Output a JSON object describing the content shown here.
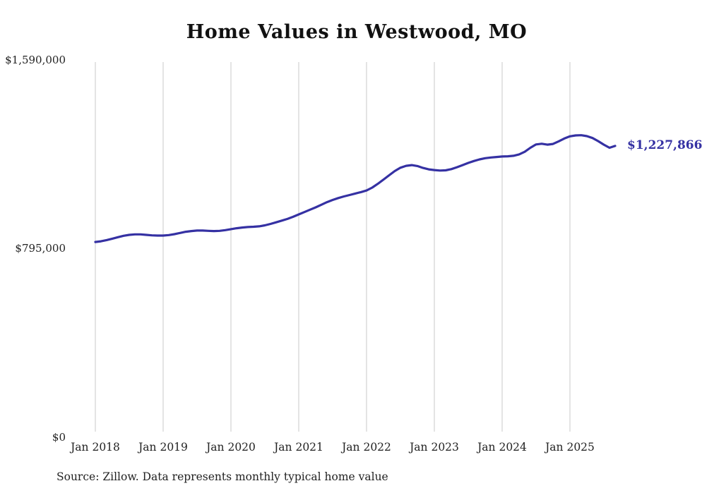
{
  "title": "Home Values in Westwood, MO",
  "source_note": "Source: Zillow. Data represents monthly typical home value",
  "colors": {
    "line": "#3531a3",
    "grid": "#c9c9c9",
    "text": "#222222"
  },
  "chart_data": {
    "type": "line",
    "title": "Home Values in Westwood, MO",
    "x_start": "2018-01",
    "x_interval": "monthly",
    "x_tick_labels": [
      "Jan 2018",
      "Jan 2019",
      "Jan 2020",
      "Jan 2021",
      "Jan 2022",
      "Jan 2023",
      "Jan 2024",
      "Jan 2025"
    ],
    "y_tick_labels": [
      "$0",
      "$795,000",
      "$1,590,000"
    ],
    "ylim": [
      0,
      1590000
    ],
    "grid": "vertical-only",
    "legend": "none",
    "end_value_label": "$1,227,866",
    "end_value": 1227866,
    "values": [
      823000,
      826000,
      831000,
      837000,
      843000,
      849000,
      853000,
      855000,
      855000,
      853000,
      851000,
      850000,
      850000,
      852000,
      856000,
      861000,
      866000,
      869000,
      871000,
      871000,
      870000,
      869000,
      870000,
      873000,
      877000,
      881000,
      884000,
      886000,
      887000,
      889000,
      893000,
      899000,
      906000,
      913000,
      920000,
      929000,
      939000,
      949000,
      959000,
      969000,
      980000,
      991000,
      1000000,
      1008000,
      1015000,
      1021000,
      1027000,
      1033000,
      1040000,
      1052000,
      1068000,
      1086000,
      1104000,
      1122000,
      1136000,
      1144000,
      1147000,
      1143000,
      1135000,
      1129000,
      1126000,
      1124000,
      1125000,
      1130000,
      1138000,
      1147000,
      1156000,
      1164000,
      1171000,
      1176000,
      1179000,
      1181000,
      1183000,
      1184000,
      1186000,
      1192000,
      1203000,
      1220000,
      1234000,
      1237000,
      1233000,
      1236000,
      1247000,
      1259000,
      1268000,
      1272000,
      1273000,
      1269000,
      1261000,
      1248000,
      1233000,
      1220000,
      1227866
    ]
  }
}
